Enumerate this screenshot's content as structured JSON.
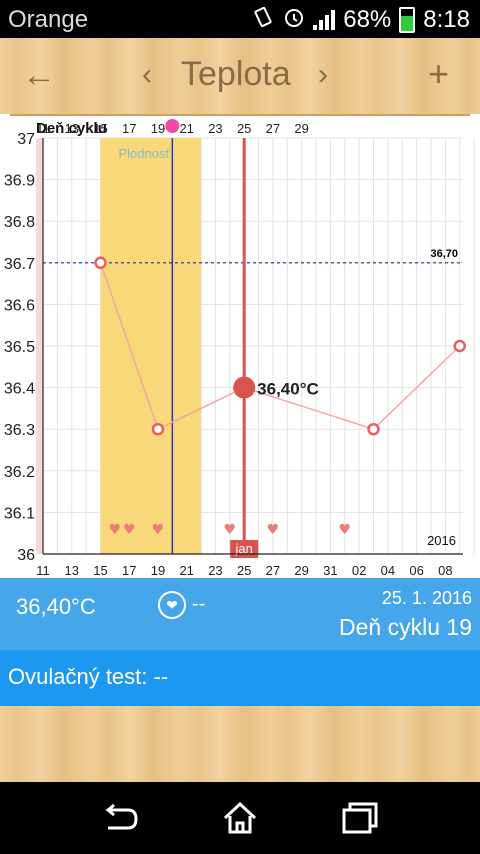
{
  "status_bar": {
    "carrier": "Orange",
    "battery": "68%",
    "time": "8:18",
    "icons": [
      "media-icon",
      "phone-icon",
      "vibrate-icon",
      "alarm-icon",
      "signal-icon",
      "battery-icon"
    ]
  },
  "header": {
    "back": "←",
    "prev": "‹",
    "title": "Teplota",
    "next": "›",
    "add": "+"
  },
  "chart_data": {
    "type": "line",
    "top_axis_label": "Deň cyklu",
    "top_ticks": [
      "11",
      "13",
      "15",
      "17",
      "19",
      "21",
      "23",
      "25",
      "27",
      "29"
    ],
    "x_ticks": [
      "11",
      "13",
      "15",
      "17",
      "19",
      "21",
      "23",
      "25",
      "27",
      "29",
      "31",
      "02",
      "04",
      "06",
      "08"
    ],
    "y_ticks": [
      "37",
      "36.9",
      "36.8",
      "36.7",
      "36.6",
      "36.5",
      "36.4",
      "36.3",
      "36.2",
      "36.1",
      "36"
    ],
    "ylim": [
      36,
      37
    ],
    "fertile_label": "Plodnosť",
    "fertile_range": [
      "15",
      "22"
    ],
    "reference_value": 36.7,
    "reference_label": "36,70",
    "points": [
      {
        "x": "15",
        "y": 36.7
      },
      {
        "x": "19",
        "y": 36.3
      },
      {
        "x": "25",
        "y": 36.4
      },
      {
        "x": "03",
        "y": 36.3
      },
      {
        "x": "09",
        "y": 36.5
      }
    ],
    "selected_label": "36,40°C",
    "hearts": [
      "16",
      "17",
      "19",
      "24",
      "27",
      "32"
    ],
    "month_label": "jan",
    "year_label": "2016",
    "colors": {
      "line": "#f4a5a5",
      "point": "#e85d5d",
      "fertile": "#f8d878",
      "selected": "#d9534f",
      "ovulation": "#1f3dbf",
      "reference": "#2a2aa8"
    }
  },
  "info": {
    "temperature": "36,40°C",
    "heart_value": "--",
    "date": "25. 1. 2016",
    "cycle_day": "Deň cyklu 19",
    "ovulation_test": "Ovulačný test: --"
  }
}
